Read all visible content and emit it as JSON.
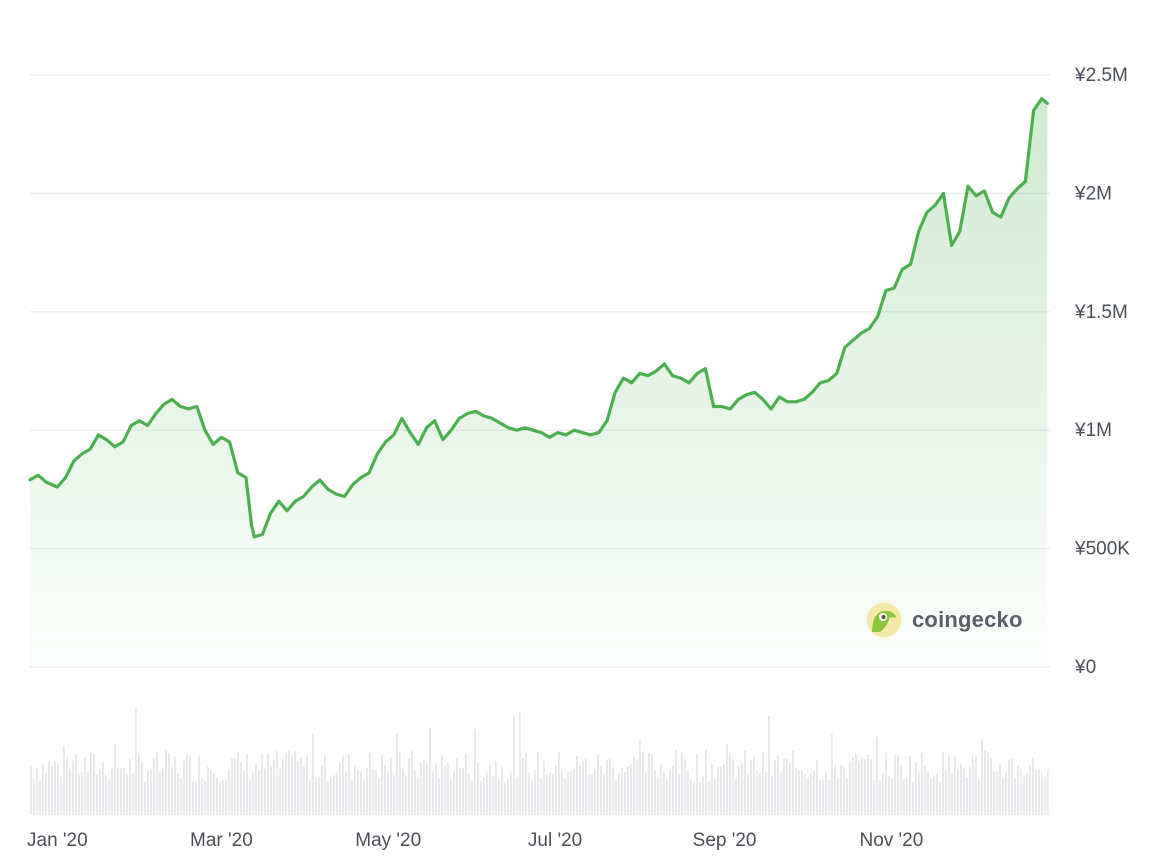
{
  "chart_data": {
    "type": "area",
    "title": "",
    "xlabel": "",
    "ylabel": "",
    "currency": "¥",
    "y_ticks": [
      "¥0",
      "¥500K",
      "¥1M",
      "¥1.5M",
      "¥2M",
      "¥2.5M"
    ],
    "y_tick_values": [
      0,
      500000,
      1000000,
      1500000,
      2000000,
      2500000
    ],
    "ylim": [
      0,
      2500000
    ],
    "x_ticks": [
      "Jan '20",
      "Mar '20",
      "May '20",
      "Jul '20",
      "Sep '20",
      "Nov '20"
    ],
    "x_tick_dates": [
      "2020-01-01",
      "2020-03-01",
      "2020-05-01",
      "2020-07-01",
      "2020-09-01",
      "2020-11-01"
    ],
    "xlim": [
      "2019-12-22",
      "2020-12-29"
    ],
    "grid": true,
    "line_color": "#4caf50",
    "fill_color": "#4caf50",
    "volume_color": "#e6e7ea",
    "series": [
      {
        "values_dates": [
          "2019-12-22",
          "2019-12-25",
          "2019-12-28",
          "2020-01-01",
          "2020-01-04",
          "2020-01-07",
          "2020-01-10",
          "2020-01-13",
          "2020-01-16",
          "2020-01-19",
          "2020-01-22",
          "2020-01-25",
          "2020-01-28",
          "2020-01-31",
          "2020-02-03",
          "2020-02-06",
          "2020-02-09",
          "2020-02-12",
          "2020-02-15",
          "2020-02-18",
          "2020-02-21",
          "2020-02-24",
          "2020-02-27",
          "2020-03-01",
          "2020-03-04",
          "2020-03-07",
          "2020-03-10",
          "2020-03-12",
          "2020-03-13",
          "2020-03-16",
          "2020-03-19",
          "2020-03-22",
          "2020-03-25",
          "2020-03-28",
          "2020-03-31",
          "2020-04-03",
          "2020-04-06",
          "2020-04-09",
          "2020-04-12",
          "2020-04-15",
          "2020-04-18",
          "2020-04-21",
          "2020-04-24",
          "2020-04-27",
          "2020-04-30",
          "2020-05-03",
          "2020-05-06",
          "2020-05-09",
          "2020-05-12",
          "2020-05-15",
          "2020-05-18",
          "2020-05-21",
          "2020-05-24",
          "2020-05-27",
          "2020-05-30",
          "2020-06-02",
          "2020-06-05",
          "2020-06-08",
          "2020-06-11",
          "2020-06-14",
          "2020-06-17",
          "2020-06-20",
          "2020-06-23",
          "2020-06-26",
          "2020-06-29",
          "2020-07-02",
          "2020-07-05",
          "2020-07-08",
          "2020-07-11",
          "2020-07-14",
          "2020-07-17",
          "2020-07-20",
          "2020-07-23",
          "2020-07-26",
          "2020-07-29",
          "2020-08-01",
          "2020-08-04",
          "2020-08-07",
          "2020-08-10",
          "2020-08-13",
          "2020-08-16",
          "2020-08-19",
          "2020-08-22",
          "2020-08-25",
          "2020-08-28",
          "2020-08-31",
          "2020-09-03",
          "2020-09-06",
          "2020-09-09",
          "2020-09-12",
          "2020-09-15",
          "2020-09-18",
          "2020-09-21",
          "2020-09-24",
          "2020-09-27",
          "2020-09-30",
          "2020-10-03",
          "2020-10-06",
          "2020-10-09",
          "2020-10-12",
          "2020-10-15",
          "2020-10-18",
          "2020-10-21",
          "2020-10-24",
          "2020-10-27",
          "2020-10-30",
          "2020-11-02",
          "2020-11-05",
          "2020-11-08",
          "2020-11-11",
          "2020-11-14",
          "2020-11-17",
          "2020-11-20",
          "2020-11-23",
          "2020-11-26",
          "2020-11-29",
          "2020-12-02",
          "2020-12-05",
          "2020-12-08",
          "2020-12-11",
          "2020-12-14",
          "2020-12-17",
          "2020-12-20",
          "2020-12-23",
          "2020-12-26",
          "2020-12-28"
        ],
        "values": [
          790000,
          810000,
          780000,
          760000,
          800000,
          870000,
          900000,
          920000,
          980000,
          960000,
          930000,
          950000,
          1020000,
          1040000,
          1020000,
          1070000,
          1110000,
          1130000,
          1100000,
          1090000,
          1100000,
          1000000,
          940000,
          970000,
          950000,
          820000,
          800000,
          600000,
          550000,
          560000,
          650000,
          700000,
          660000,
          700000,
          720000,
          760000,
          790000,
          750000,
          730000,
          720000,
          770000,
          800000,
          820000,
          900000,
          950000,
          980000,
          1050000,
          990000,
          940000,
          1010000,
          1040000,
          960000,
          1000000,
          1050000,
          1070000,
          1080000,
          1060000,
          1050000,
          1030000,
          1010000,
          1000000,
          1010000,
          1000000,
          990000,
          970000,
          990000,
          980000,
          1000000,
          990000,
          980000,
          990000,
          1040000,
          1160000,
          1220000,
          1200000,
          1240000,
          1230000,
          1250000,
          1280000,
          1230000,
          1220000,
          1200000,
          1240000,
          1260000,
          1100000,
          1100000,
          1090000,
          1130000,
          1150000,
          1160000,
          1130000,
          1090000,
          1140000,
          1120000,
          1120000,
          1130000,
          1160000,
          1200000,
          1210000,
          1240000,
          1350000,
          1380000,
          1410000,
          1430000,
          1480000,
          1590000,
          1600000,
          1680000,
          1700000,
          1840000,
          1920000,
          1950000,
          2000000,
          1780000,
          1840000,
          2030000,
          1990000,
          2010000,
          1920000,
          1900000,
          1980000,
          2020000,
          2050000,
          2350000,
          2400000,
          2380000
        ]
      }
    ],
    "volume_bars": 340
  },
  "watermark": {
    "text": "coingecko"
  }
}
